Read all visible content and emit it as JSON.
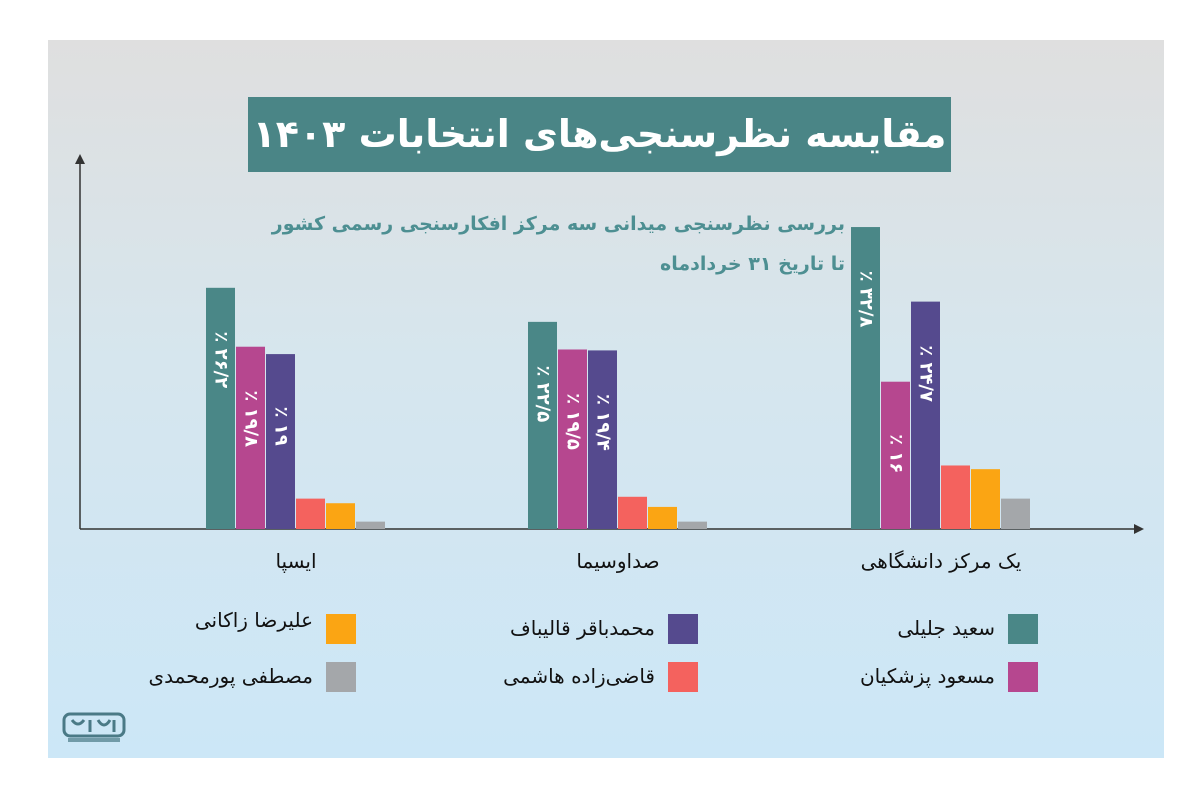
{
  "title": "مقایسه نظرسنجی‌های انتخابات ۱۴۰۳",
  "subtitle_line1": "بررسی نظرسنجی میدانی سه مرکز افکارسنجی رسمی کشور",
  "subtitle_line2": "تا تاریخ ۳۱ خردادماه",
  "chart_data": {
    "type": "bar",
    "categories": [
      "ایسپا",
      "صداوسیما",
      "یک مرکز دانشگاهی"
    ],
    "series": [
      {
        "name": "سعید جلیلی",
        "color": "#4a8787",
        "values": [
          26.2,
          22.5,
          32.8
        ],
        "labels": [
          "٪ ۲۶/۲",
          "٪ ۲۲/۵",
          "٪ ۳۲/۸"
        ]
      },
      {
        "name": "مسعود پزشکیان",
        "color": "#b6478f",
        "values": [
          19.8,
          19.5,
          16
        ],
        "labels": [
          "٪ ۱۹/۸",
          "٪ ۱۹/۵",
          "٪ ۱۶"
        ]
      },
      {
        "name": "محمدباقر قالیباف",
        "color": "#554a8e",
        "values": [
          19,
          19.4,
          24.7
        ],
        "labels": [
          "٪ ۱۹",
          "٪ ۱۹/۴",
          "٪ ۲۴/۷"
        ]
      },
      {
        "name": "قاضی‌زاده هاشمی",
        "color": "#f4625e",
        "values": [
          3.3,
          3.5,
          6.9
        ],
        "labels": [
          "",
          "",
          ""
        ]
      },
      {
        "name": "علیرضا زاکانی",
        "color": "#fba513",
        "values": [
          2.8,
          2.4,
          6.5
        ],
        "labels": [
          "",
          "",
          ""
        ]
      },
      {
        "name": "مصطفی پورمحمدی",
        "color": "#a4a7aa",
        "values": [
          0.8,
          0.8,
          3.3
        ],
        "labels": [
          "",
          "",
          ""
        ]
      }
    ],
    "ylim": [
      0,
      34
    ],
    "grid": false,
    "legend_position": "bottom"
  },
  "legend": [
    {
      "label": "سعید جلیلی",
      "color": "#4a8787"
    },
    {
      "label": "مسعود پزشکیان",
      "color": "#b6478f"
    },
    {
      "label": "محمدباقر قالیباف",
      "color": "#554a8e"
    },
    {
      "label": "قاضی‌زاده هاشمی",
      "color": "#f4625e"
    },
    {
      "label": "علیرضا زاکانی",
      "color": "#fba513"
    },
    {
      "label": "مصطفی پورمحمدی",
      "color": "#a4a7aa"
    }
  ],
  "logo_icon": "logo-emblem-icon"
}
